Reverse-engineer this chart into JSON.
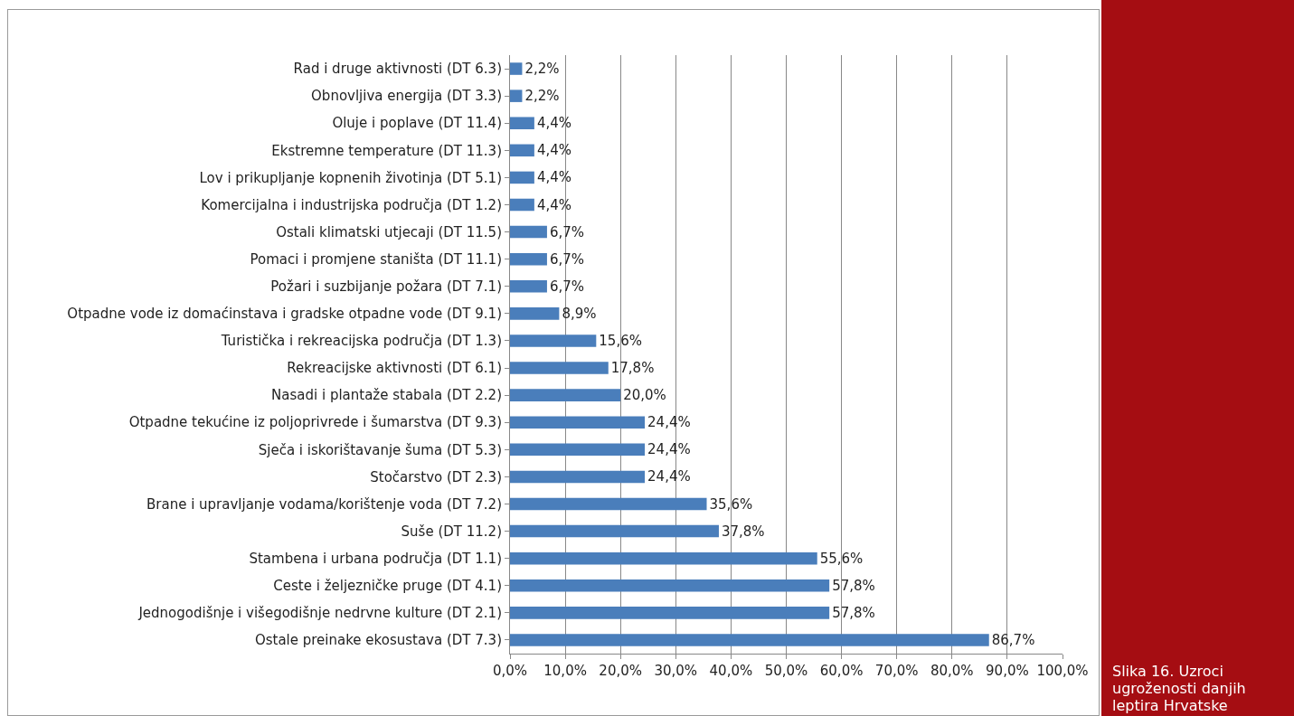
{
  "chart_data": {
    "type": "bar",
    "orientation": "horizontal",
    "categories": [
      "Rad i druge aktivnosti (DT 6.3)",
      "Obnovljiva energija (DT 3.3)",
      "Oluje i poplave (DT 11.4)",
      "Ekstremne temperature (DT 11.3)",
      "Lov i prikupljanje kopnenih životinja (DT 5.1)",
      "Komercijalna i industrijska područja (DT 1.2)",
      "Ostali klimatski utjecaji (DT 11.5)",
      "Pomaci i promjene staništa (DT 11.1)",
      "Požari i suzbijanje požara (DT 7.1)",
      "Otpadne vode iz domaćinstava i gradske otpadne vode (DT 9.1)",
      "Turistička i rekreacijska područja (DT 1.3)",
      "Rekreacijske aktivnosti (DT 6.1)",
      "Nasadi i plantaže stabala (DT 2.2)",
      "Otpadne tekućine iz poljoprivrede i šumarstva (DT 9.3)",
      "Sječa i iskorištavanje šuma (DT 5.3)",
      "Stočarstvo (DT 2.3)",
      "Brane i upravljanje vodama/korištenje voda (DT 7.2)",
      "Suše (DT 11.2)",
      "Stambena i urbana područja (DT 1.1)",
      "Ceste i željezničke pruge (DT 4.1)",
      "Jednogodišnje i višegodišnje nedrvne kulture (DT 2.1)",
      "Ostale preinake ekosustava (DT 7.3)"
    ],
    "values": [
      2.2,
      2.2,
      4.4,
      4.4,
      4.4,
      4.4,
      6.7,
      6.7,
      6.7,
      8.9,
      15.6,
      17.8,
      20.0,
      24.4,
      24.4,
      24.4,
      35.6,
      37.8,
      55.6,
      57.8,
      57.8,
      86.7
    ],
    "value_labels": [
      "2,2%",
      "2,2%",
      "4,4%",
      "4,4%",
      "4,4%",
      "4,4%",
      "6,7%",
      "6,7%",
      "6,7%",
      "8,9%",
      "15,6%",
      "17,8%",
      "20,0%",
      "24,4%",
      "24,4%",
      "24,4%",
      "35,6%",
      "37,8%",
      "55,6%",
      "57,8%",
      "57,8%",
      "86,7%"
    ],
    "color": "#4a7ebb",
    "xlim": [
      0,
      100
    ],
    "xticks": [
      {
        "value": 0,
        "label": "0,0%"
      },
      {
        "value": 10,
        "label": "10,0%"
      },
      {
        "value": 20,
        "label": "20,0%"
      },
      {
        "value": 30,
        "label": "30,0%"
      },
      {
        "value": 40,
        "label": "40,0%"
      },
      {
        "value": 50,
        "label": "50,0%"
      },
      {
        "value": 60,
        "label": "60,0%"
      },
      {
        "value": 70,
        "label": "70,0%"
      },
      {
        "value": 80,
        "label": "80,0%"
      },
      {
        "value": 90,
        "label": "90,0%"
      },
      {
        "value": 100,
        "label": "100,0%"
      }
    ],
    "grid": "x",
    "annotations": [
      "Slika 16. Uzroci ugroženosti danjih leptira Hrvatske"
    ]
  }
}
